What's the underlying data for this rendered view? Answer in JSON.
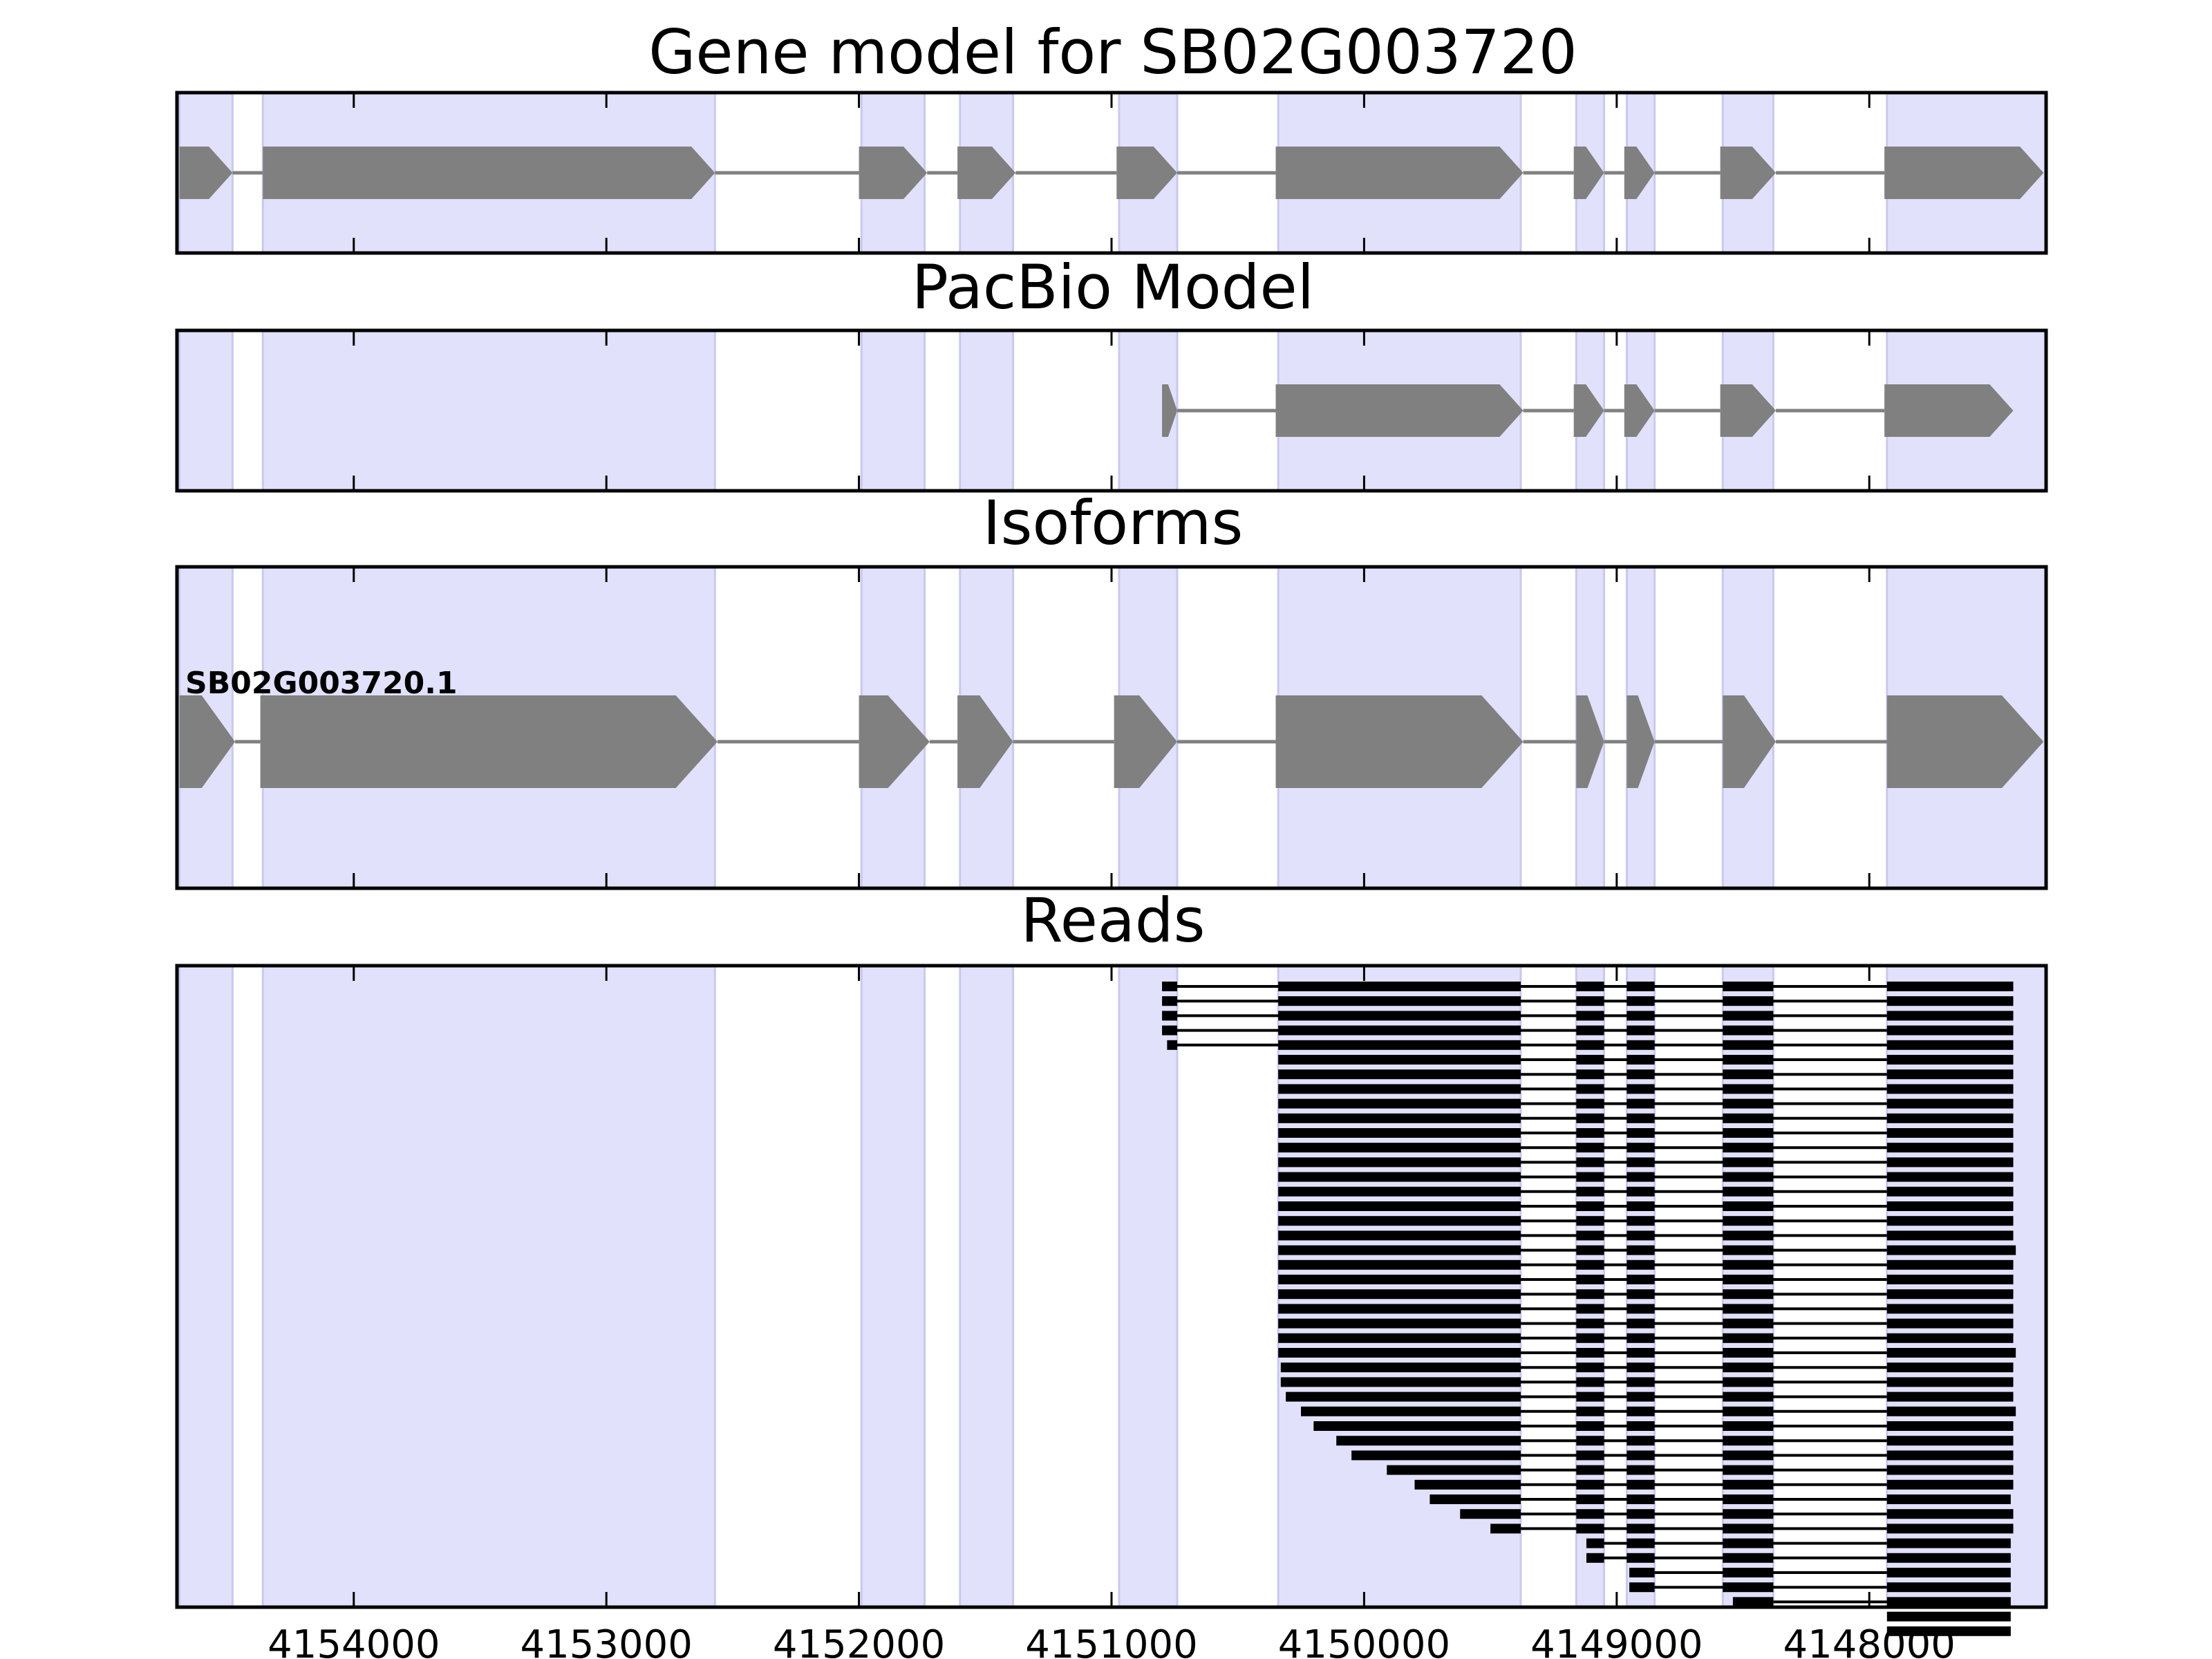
{
  "colors": {
    "exon_shade": "#e1e1fc",
    "exon_shade_edge": "#c9c9ef",
    "feature_fill": "#808080",
    "read_fill": "#000000",
    "frame": "#000000"
  },
  "chart_data": {
    "type": "gene-track",
    "strand": "minus",
    "xlim": [
      4154700,
      4147300
    ],
    "x_ticks": [
      4154000,
      4153000,
      4152000,
      4151000,
      4150000,
      4149000,
      4148000
    ],
    "x_tick_labels": [
      "4154000",
      "4153000",
      "4152000",
      "4151000",
      "4150000",
      "4149000",
      "4148000"
    ],
    "grid": false,
    "shaded_exons": [
      [
        4154690,
        4154480
      ],
      [
        4154360,
        4152570
      ],
      [
        4151990,
        4151740
      ],
      [
        4151600,
        4151390
      ],
      [
        4150970,
        4150740
      ],
      [
        4150340,
        4149380
      ],
      [
        4149160,
        4149050
      ],
      [
        4148960,
        4148850
      ],
      [
        4148580,
        4148380
      ],
      [
        4147930,
        4147300
      ]
    ],
    "panels": [
      {
        "title": "Gene model for SB02G003720",
        "features": [
          [
            4154690,
            4154480
          ],
          [
            4154360,
            4152570
          ],
          [
            4152000,
            4151730
          ],
          [
            4151610,
            4151380
          ],
          [
            4150980,
            4150740
          ],
          [
            4150350,
            4149370
          ],
          [
            4149170,
            4149050
          ],
          [
            4148970,
            4148850
          ],
          [
            4148590,
            4148370
          ],
          [
            4147940,
            4147310
          ]
        ]
      },
      {
        "title": "PacBio Model",
        "features": [
          [
            4150800,
            4150740
          ],
          [
            4150350,
            4149370
          ],
          [
            4149170,
            4149050
          ],
          [
            4148970,
            4148850
          ],
          [
            4148590,
            4148370
          ],
          [
            4147940,
            4147430
          ]
        ]
      },
      {
        "title": "Isoforms",
        "isoform_name": "SB02G003720.1",
        "features": [
          [
            4154690,
            4154470
          ],
          [
            4154370,
            4152560
          ],
          [
            4152000,
            4151720
          ],
          [
            4151610,
            4151390
          ],
          [
            4150990,
            4150740
          ],
          [
            4150350,
            4149370
          ],
          [
            4149160,
            4149050
          ],
          [
            4148960,
            4148850
          ],
          [
            4148580,
            4148370
          ],
          [
            4147930,
            4147310
          ]
        ]
      },
      {
        "title": "Reads",
        "read_count": 45,
        "read_starts": [
          4150800,
          4150800,
          4150800,
          4150800,
          4150780,
          4150340,
          4150340,
          4150340,
          4150340,
          4150340,
          4150340,
          4150340,
          4150340,
          4150340,
          4150340,
          4150340,
          4150340,
          4150340,
          4150340,
          4150340,
          4150340,
          4150340,
          4150340,
          4150340,
          4150340,
          4150340,
          4150330,
          4150330,
          4150310,
          4150250,
          4150200,
          4150110,
          4150050,
          4149910,
          4149800,
          4149740,
          4149620,
          4149500,
          4149120,
          4149120,
          4148950,
          4148950,
          4148540,
          4147930,
          4147930
        ],
        "read_ends": [
          4147430,
          4147430,
          4147430,
          4147430,
          4147430,
          4147430,
          4147430,
          4147430,
          4147430,
          4147430,
          4147430,
          4147430,
          4147430,
          4147430,
          4147430,
          4147430,
          4147430,
          4147430,
          4147420,
          4147430,
          4147430,
          4147430,
          4147430,
          4147430,
          4147430,
          4147420,
          4147430,
          4147430,
          4147430,
          4147420,
          4147430,
          4147430,
          4147430,
          4147430,
          4147430,
          4147440,
          4147430,
          4147430,
          4147440,
          4147440,
          4147440,
          4147440,
          4147440,
          4147440,
          4147440
        ]
      }
    ]
  }
}
